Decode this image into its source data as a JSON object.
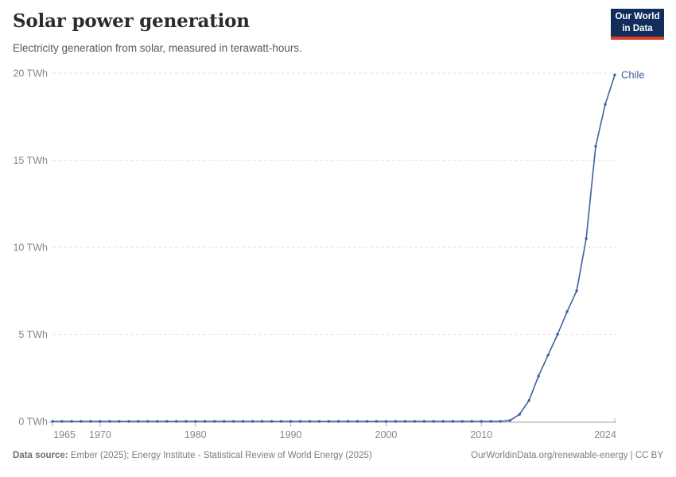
{
  "header": {
    "title": "Solar power generation",
    "subtitle": "Electricity generation from solar, measured in terawatt-hours.",
    "logo": {
      "line1": "Our World",
      "line2": "in Data",
      "bg_color": "#102d5c",
      "accent_color": "#dc3e2a"
    }
  },
  "footer": {
    "source_label": "Data source:",
    "source_text": " Ember (2025); Energy Institute - Statistical Review of World Energy (2025)",
    "link_text": "OurWorldinData.org/renewable-energy | CC BY"
  },
  "chart_data": {
    "type": "line",
    "title": "Solar power generation",
    "subtitle": "Electricity generation from solar, measured in terawatt-hours.",
    "unit": "TWh",
    "xlim": [
      1965,
      2024
    ],
    "ylim": [
      0,
      20
    ],
    "grid": "horizontal-dashed",
    "legend_position": "line-end-label",
    "x_ticks": [
      1965,
      1970,
      1980,
      1990,
      2000,
      2010,
      2024
    ],
    "y_ticks": [
      0,
      5,
      10,
      15,
      20
    ],
    "y_tick_labels": [
      "0 TWh",
      "5 TWh",
      "10 TWh",
      "15 TWh",
      "20 TWh"
    ],
    "series": [
      {
        "name": "Chile",
        "color": "#3f619e",
        "years": [
          1965,
          1966,
          1967,
          1968,
          1969,
          1970,
          1971,
          1972,
          1973,
          1974,
          1975,
          1976,
          1977,
          1978,
          1979,
          1980,
          1981,
          1982,
          1983,
          1984,
          1985,
          1986,
          1987,
          1988,
          1989,
          1990,
          1991,
          1992,
          1993,
          1994,
          1995,
          1996,
          1997,
          1998,
          1999,
          2000,
          2001,
          2002,
          2003,
          2004,
          2005,
          2006,
          2007,
          2008,
          2009,
          2010,
          2011,
          2012,
          2013,
          2014,
          2015,
          2016,
          2017,
          2018,
          2019,
          2020,
          2021,
          2022,
          2023,
          2024
        ],
        "values": [
          0,
          0,
          0,
          0,
          0,
          0,
          0,
          0,
          0,
          0,
          0,
          0,
          0,
          0,
          0,
          0,
          0,
          0,
          0,
          0,
          0,
          0,
          0,
          0,
          0,
          0,
          0,
          0,
          0,
          0,
          0,
          0,
          0,
          0,
          0,
          0,
          0,
          0,
          0,
          0,
          0,
          0,
          0,
          0,
          0,
          0,
          0,
          0,
          0.05,
          0.4,
          1.2,
          2.6,
          3.8,
          5.0,
          6.3,
          7.5,
          10.5,
          15.8,
          18.2,
          19.9
        ]
      }
    ]
  }
}
